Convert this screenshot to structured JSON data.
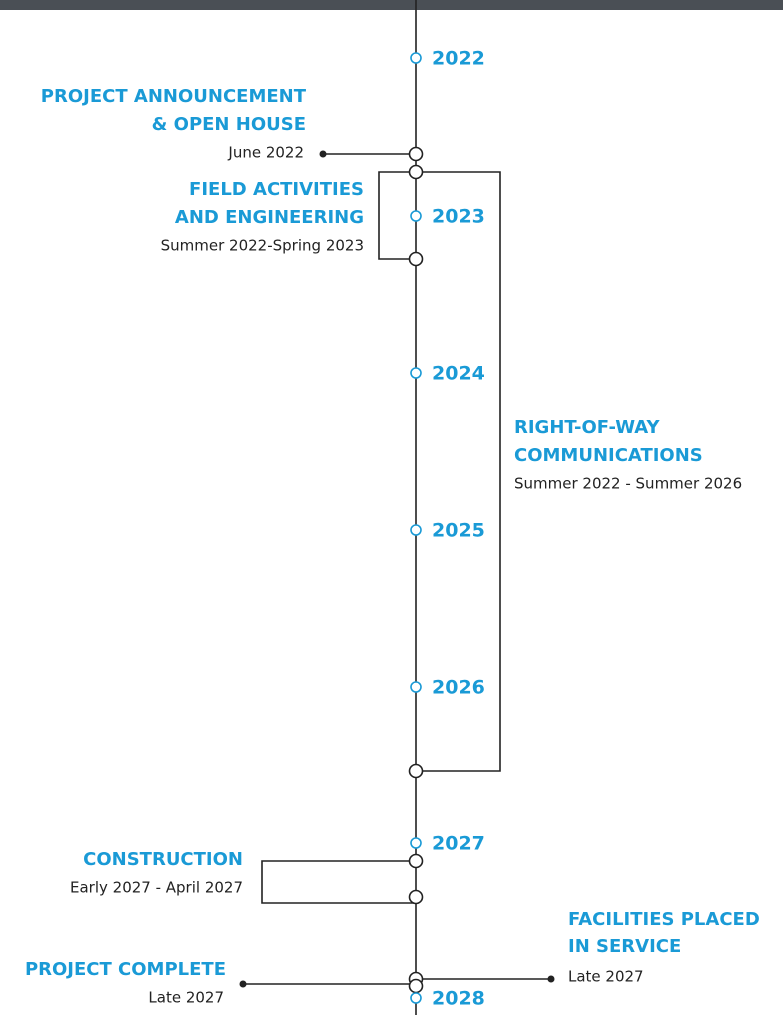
{
  "years": [
    "2022",
    "2023",
    "2024",
    "2025",
    "2026",
    "2027",
    "2028"
  ],
  "events": [
    {
      "title": [
        "PROJECT ANNOUNCEMENT",
        "& OPEN HOUSE"
      ],
      "date": "June 2022"
    },
    {
      "title": [
        "FIELD ACTIVITIES",
        "AND ENGINEERING"
      ],
      "date": "Summer 2022-Spring 2023"
    },
    {
      "title": [
        "RIGHT-OF-WAY",
        "COMMUNICATIONS"
      ],
      "date": "Summer 2022 - Summer 2026"
    },
    {
      "title": [
        "CONSTRUCTION"
      ],
      "date": "Early 2027 - April 2027"
    },
    {
      "title": [
        "FACILITIES PLACED",
        "IN SERVICE"
      ],
      "date": "Late 2027"
    },
    {
      "title": [
        "PROJECT COMPLETE"
      ],
      "date": "Late 2027"
    }
  ]
}
